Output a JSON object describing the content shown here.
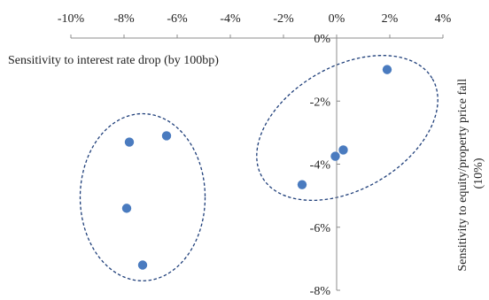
{
  "chart_data": {
    "type": "scatter",
    "title": "",
    "xlabel": "Sensitivity to interest rate drop (by 100bp)",
    "ylabel_line1": "Sensitivity to equity/property price fall",
    "ylabel_line2": "(10%)",
    "xlim": [
      -10,
      4
    ],
    "ylim": [
      -8,
      0
    ],
    "x_ticks": [
      -10,
      -8,
      -6,
      -4,
      -2,
      0,
      2,
      4
    ],
    "x_tick_labels": [
      "-10%",
      "-8%",
      "-6%",
      "-4%",
      "-2%",
      "0%",
      "2%",
      "4%"
    ],
    "y_ticks": [
      0,
      -2,
      -4,
      -6,
      -8
    ],
    "y_tick_labels": [
      "0%",
      "-2%",
      "-4%",
      "-6%",
      "-8%"
    ],
    "points": [
      {
        "x": -7.8,
        "y": -3.3
      },
      {
        "x": -6.4,
        "y": -3.1
      },
      {
        "x": -7.9,
        "y": -5.4
      },
      {
        "x": -7.3,
        "y": -7.2
      },
      {
        "x": 1.9,
        "y": -1.0
      },
      {
        "x": 0.25,
        "y": -3.55
      },
      {
        "x": -0.05,
        "y": -3.75
      },
      {
        "x": -1.3,
        "y": -4.65
      }
    ],
    "clusters": [
      {
        "cx": -7.3,
        "cy": -5.05,
        "rx": 2.35,
        "ry": 2.65,
        "rotation": 0
      },
      {
        "cx": 0.4,
        "cy": -2.85,
        "rx": 3.7,
        "ry": 1.95,
        "rotation": -30
      }
    ],
    "colors": {
      "point": "#4a7bbf",
      "cluster_outline": "#1f3f7a",
      "axis": "#8c8c8c",
      "text": "#222222"
    },
    "legend": "none",
    "grid": false
  }
}
